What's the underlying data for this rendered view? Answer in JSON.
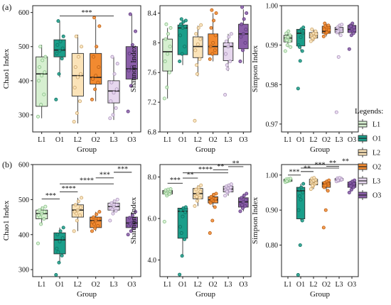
{
  "panel_labels": [
    "(a)",
    "(b)"
  ],
  "group_order": [
    "L1",
    "O1",
    "L2",
    "O2",
    "L3",
    "O3"
  ],
  "legend": {
    "title": "Legends:",
    "entries": [
      "L1",
      "O1",
      "L2",
      "O2",
      "L3",
      "O3"
    ]
  },
  "colors": {
    "L1": {
      "fill": "#d6efd0",
      "edge": "#84bf83"
    },
    "O1": {
      "fill": "#1a9e8a",
      "edge": "#0f6f60"
    },
    "L2": {
      "fill": "#fbe3b8",
      "edge": "#c9a46a"
    },
    "O2": {
      "fill": "#f28a30",
      "edge": "#b85e14"
    },
    "L3": {
      "fill": "#e6d7ee",
      "edge": "#aa92ba"
    },
    "O3": {
      "fill": "#8a5ea8",
      "edge": "#5e3a7e"
    }
  },
  "chart_data": [
    {
      "type": "box",
      "id": "a-chao1",
      "xlabel": "Group",
      "ylabel": "Chao1 Index",
      "ylim": [
        250,
        620
      ],
      "yticks": [
        300,
        400,
        500,
        600
      ],
      "categories": [
        "L1",
        "O1",
        "L2",
        "O2",
        "L3",
        "O3"
      ],
      "boxes": [
        {
          "group": "L1",
          "min": 290,
          "q1": 325,
          "median": 420,
          "q3": 470,
          "max": 505,
          "points": [
            295,
            330,
            360,
            400,
            415,
            425,
            440,
            460,
            470,
            500
          ]
        },
        {
          "group": "O1",
          "min": 410,
          "q1": 470,
          "median": 490,
          "q3": 520,
          "max": 575,
          "points": [
            345,
            420,
            465,
            480,
            488,
            495,
            505,
            515,
            530,
            575
          ]
        },
        {
          "group": "L2",
          "min": 275,
          "q1": 355,
          "median": 415,
          "q3": 480,
          "max": 535,
          "points": [
            280,
            305,
            340,
            380,
            410,
            420,
            440,
            470,
            500,
            530
          ]
        },
        {
          "group": "O2",
          "min": 340,
          "q1": 390,
          "median": 410,
          "q3": 480,
          "max": 580,
          "points": [
            345,
            375,
            395,
            405,
            415,
            440,
            470,
            500,
            560,
            585
          ]
        },
        {
          "group": "L3",
          "min": 285,
          "q1": 335,
          "median": 370,
          "q3": 400,
          "max": 470,
          "points": [
            290,
            300,
            320,
            340,
            365,
            375,
            395,
            420,
            450,
            470
          ]
        },
        {
          "group": "O3",
          "min": 380,
          "q1": 405,
          "median": 435,
          "q3": 500,
          "max": 595,
          "points": [
            310,
            385,
            410,
            430,
            440,
            460,
            480,
            505,
            545,
            595
          ]
        }
      ],
      "significance": [
        {
          "from": "O1",
          "to": "L3",
          "y": 590,
          "label": "***"
        }
      ]
    },
    {
      "type": "box",
      "id": "a-shannon",
      "xlabel": "Group",
      "ylabel": "Shannon Index",
      "ylim": [
        6.8,
        8.5
      ],
      "yticks": [
        6.8,
        7.2,
        7.6,
        8.0,
        8.4
      ],
      "categories": [
        "L1",
        "O1",
        "L2",
        "O2",
        "L3",
        "O3"
      ],
      "boxes": [
        {
          "group": "L1",
          "min": 7.25,
          "q1": 7.62,
          "median": 7.88,
          "q3": 8.05,
          "max": 8.2,
          "points": [
            7.25,
            7.4,
            7.6,
            7.75,
            7.85,
            7.95,
            8.05,
            8.12,
            8.2,
            8.25
          ]
        },
        {
          "group": "O1",
          "min": 7.7,
          "q1": 7.84,
          "median": 8.2,
          "q3": 8.24,
          "max": 8.3,
          "points": [
            7.75,
            7.85,
            7.95,
            8.1,
            8.2,
            8.22,
            8.25,
            8.28,
            8.3,
            8.32
          ]
        },
        {
          "group": "L2",
          "min": 7.55,
          "q1": 7.8,
          "median": 7.95,
          "q3": 8.08,
          "max": 8.23,
          "points": [
            6.95,
            7.58,
            7.78,
            7.9,
            7.98,
            8.05,
            8.12,
            8.2,
            8.24,
            7.7
          ]
        },
        {
          "group": "O2",
          "min": 7.75,
          "q1": 7.84,
          "median": 7.95,
          "q3": 8.12,
          "max": 8.4,
          "points": [
            7.78,
            7.85,
            7.9,
            7.95,
            8.0,
            8.1,
            8.2,
            8.3,
            8.4,
            8.44
          ]
        },
        {
          "group": "L3",
          "min": 7.62,
          "q1": 7.76,
          "median": 7.95,
          "q3": 8.0,
          "max": 8.12,
          "points": [
            7.3,
            7.65,
            7.75,
            7.85,
            7.95,
            7.98,
            8.02,
            8.08,
            8.12,
            7.7
          ]
        },
        {
          "group": "O3",
          "min": 7.72,
          "q1": 7.92,
          "median": 8.12,
          "q3": 8.25,
          "max": 8.45,
          "points": [
            7.75,
            7.9,
            8.0,
            8.08,
            8.12,
            8.18,
            8.25,
            8.32,
            8.4,
            8.48
          ]
        }
      ],
      "significance": []
    },
    {
      "type": "box",
      "id": "a-simpson",
      "xlabel": "Group",
      "ylabel": "Simpson Index",
      "ylim": [
        0.968,
        1.0
      ],
      "yticks": [
        0.97,
        0.98,
        0.99,
        1.0
      ],
      "tick_labels": [
        "0.97",
        "0.98",
        "0.99",
        "1.00"
      ],
      "categories": [
        "L1",
        "O1",
        "L2",
        "O2",
        "L3",
        "O3"
      ],
      "boxes": [
        {
          "group": "L1",
          "min": 0.9895,
          "q1": 0.9908,
          "median": 0.9918,
          "q3": 0.9925,
          "max": 0.9935,
          "points": [
            0.9885,
            0.99,
            0.991,
            0.9915,
            0.992,
            0.9925,
            0.993,
            0.9935,
            0.9895,
            0.9912
          ]
        },
        {
          "group": "O1",
          "min": 0.9885,
          "q1": 0.9898,
          "median": 0.993,
          "q3": 0.994,
          "max": 0.9945,
          "points": [
            0.979,
            0.986,
            0.9885,
            0.99,
            0.992,
            0.993,
            0.9935,
            0.994,
            0.9945,
            0.9895
          ]
        },
        {
          "group": "L2",
          "min": 0.991,
          "q1": 0.9918,
          "median": 0.9925,
          "q3": 0.9932,
          "max": 0.994,
          "points": [
            0.991,
            0.9915,
            0.992,
            0.9925,
            0.993,
            0.9935,
            0.994,
            0.9922,
            0.9928,
            0.9918
          ]
        },
        {
          "group": "O2",
          "min": 0.9922,
          "q1": 0.993,
          "median": 0.9935,
          "q3": 0.9948,
          "max": 0.9955,
          "points": [
            0.9922,
            0.993,
            0.9935,
            0.994,
            0.9945,
            0.995,
            0.9955,
            0.9932,
            0.9938,
            0.9948
          ]
        },
        {
          "group": "L3",
          "min": 0.9925,
          "q1": 0.9932,
          "median": 0.994,
          "q3": 0.9945,
          "max": 0.9952,
          "points": [
            0.973,
            0.987,
            0.9925,
            0.9932,
            0.9938,
            0.994,
            0.9945,
            0.995,
            0.9952,
            0.9935
          ]
        },
        {
          "group": "O3",
          "min": 0.9925,
          "q1": 0.9932,
          "median": 0.994,
          "q3": 0.995,
          "max": 0.9955,
          "points": [
            0.989,
            0.9925,
            0.993,
            0.9935,
            0.994,
            0.9945,
            0.995,
            0.9955,
            0.9938,
            0.9948
          ]
        }
      ],
      "significance": []
    },
    {
      "type": "box",
      "id": "b-chao1",
      "xlabel": "Group",
      "ylabel": "Chao1 Index",
      "ylim": [
        280,
        600
      ],
      "yticks": [
        300,
        400,
        500,
        600
      ],
      "categories": [
        "L1",
        "O1",
        "L2",
        "O2",
        "L3",
        "O3"
      ],
      "boxes": [
        {
          "group": "L1",
          "min": 430,
          "q1": 445,
          "median": 460,
          "q3": 470,
          "max": 480,
          "points": [
            375,
            430,
            445,
            455,
            460,
            465,
            470,
            475,
            480,
            450
          ]
        },
        {
          "group": "O1",
          "min": 320,
          "q1": 345,
          "median": 385,
          "q3": 405,
          "max": 420,
          "points": [
            285,
            320,
            340,
            360,
            380,
            390,
            400,
            410,
            420,
            350
          ]
        },
        {
          "group": "L2",
          "min": 410,
          "q1": 450,
          "median": 470,
          "q3": 485,
          "max": 505,
          "points": [
            410,
            440,
            455,
            465,
            470,
            478,
            485,
            495,
            505,
            460
          ]
        },
        {
          "group": "O2",
          "min": 410,
          "q1": 420,
          "median": 440,
          "q3": 450,
          "max": 465,
          "points": [
            410,
            418,
            425,
            435,
            440,
            445,
            450,
            458,
            465,
            430
          ]
        },
        {
          "group": "L3",
          "min": 460,
          "q1": 470,
          "median": 480,
          "q3": 490,
          "max": 500,
          "points": [
            440,
            460,
            468,
            475,
            480,
            485,
            490,
            495,
            500,
            472
          ]
        },
        {
          "group": "O3",
          "min": 410,
          "q1": 420,
          "median": 433,
          "q3": 450,
          "max": 465,
          "points": [
            400,
            410,
            418,
            425,
            433,
            440,
            448,
            455,
            465,
            430
          ]
        }
      ],
      "significance": [
        {
          "from": "L1",
          "to": "O1",
          "y": 502,
          "label": "***"
        },
        {
          "from": "O1",
          "to": "L2",
          "y": 522,
          "label": "****"
        },
        {
          "from": "O1",
          "to": "L3",
          "y": 545,
          "label": "****"
        },
        {
          "from": "L3",
          "to": "O2",
          "y": 562,
          "label": "***"
        },
        {
          "from": "L3",
          "to": "O3",
          "y": 578,
          "label": "***"
        }
      ]
    },
    {
      "type": "box",
      "id": "b-shannon",
      "xlabel": "Group",
      "ylabel": "Shannon Index",
      "ylim": [
        3.2,
        8.6
      ],
      "yticks": [
        4.0,
        6.0,
        8.0
      ],
      "tick_labels": [
        "4.0",
        "6.0",
        "8.0"
      ],
      "categories": [
        "L1",
        "O1",
        "L2",
        "O2",
        "L3",
        "O3"
      ],
      "boxes": [
        {
          "group": "L1",
          "min": 7.1,
          "q1": 7.18,
          "median": 7.28,
          "q3": 7.35,
          "max": 7.42,
          "points": [
            5.85,
            7.1,
            7.18,
            7.24,
            7.28,
            7.32,
            7.36,
            7.4,
            7.42,
            7.2
          ]
        },
        {
          "group": "O1",
          "min": 4.2,
          "q1": 5.05,
          "median": 6.35,
          "q3": 6.5,
          "max": 6.55,
          "points": [
            3.3,
            4.2,
            5.0,
            5.6,
            6.1,
            6.3,
            6.4,
            6.5,
            6.55,
            5.3
          ]
        },
        {
          "group": "L2",
          "min": 6.6,
          "q1": 6.95,
          "median": 7.2,
          "q3": 7.45,
          "max": 7.6,
          "points": [
            6.6,
            6.85,
            7.0,
            7.1,
            7.2,
            7.3,
            7.4,
            7.5,
            7.6,
            7.05
          ]
        },
        {
          "group": "O2",
          "min": 6.55,
          "q1": 6.75,
          "median": 6.9,
          "q3": 7.05,
          "max": 7.2,
          "points": [
            5.3,
            5.9,
            6.55,
            6.75,
            6.85,
            6.95,
            7.05,
            7.15,
            7.2,
            6.9
          ]
        },
        {
          "group": "L3",
          "min": 7.1,
          "q1": 7.28,
          "median": 7.42,
          "q3": 7.55,
          "max": 7.65,
          "points": [
            7.1,
            7.25,
            7.35,
            7.4,
            7.45,
            7.5,
            7.55,
            7.6,
            7.65,
            7.3
          ]
        },
        {
          "group": "O3",
          "min": 6.35,
          "q1": 6.55,
          "median": 6.8,
          "q3": 7.0,
          "max": 7.2,
          "points": [
            6.35,
            6.5,
            6.6,
            6.7,
            6.8,
            6.9,
            7.0,
            7.1,
            7.2,
            6.65
          ]
        }
      ],
      "significance": [
        {
          "from": "L1",
          "to": "O1",
          "y": 7.7,
          "label": "***"
        },
        {
          "from": "O1",
          "to": "L2",
          "y": 7.95,
          "label": "**"
        },
        {
          "from": "O1",
          "to": "L3",
          "y": 8.2,
          "label": "****"
        },
        {
          "from": "L3",
          "to": "O2",
          "y": 8.35,
          "label": "**"
        },
        {
          "from": "L3",
          "to": "O3",
          "y": 8.5,
          "label": "**"
        }
      ]
    },
    {
      "type": "box",
      "id": "b-simpson",
      "xlabel": "Group",
      "ylabel": "Simpson Index",
      "ylim": [
        0.71,
        1.03
      ],
      "yticks": [
        0.8,
        0.9,
        1.0
      ],
      "tick_labels": [
        "0.80",
        "0.90",
        "1.00"
      ],
      "categories": [
        "L1",
        "O1",
        "L2",
        "O2",
        "L3",
        "O3"
      ],
      "boxes": [
        {
          "group": "L1",
          "min": 0.98,
          "q1": 0.982,
          "median": 0.985,
          "q3": 0.988,
          "max": 0.99,
          "points": [
            0.98,
            0.982,
            0.984,
            0.985,
            0.986,
            0.987,
            0.988,
            0.989,
            0.99,
            0.983
          ]
        },
        {
          "group": "O1",
          "min": 0.87,
          "q1": 0.875,
          "median": 0.955,
          "q3": 0.965,
          "max": 0.975,
          "points": [
            0.715,
            0.8,
            0.87,
            0.9,
            0.93,
            0.95,
            0.96,
            0.965,
            0.975,
            0.94
          ]
        },
        {
          "group": "L2",
          "min": 0.96,
          "q1": 0.972,
          "median": 0.98,
          "q3": 0.988,
          "max": 0.992,
          "points": [
            0.96,
            0.968,
            0.975,
            0.98,
            0.984,
            0.987,
            0.99,
            0.992,
            0.978,
            0.97
          ]
        },
        {
          "group": "O2",
          "min": 0.955,
          "q1": 0.965,
          "median": 0.975,
          "q3": 0.98,
          "max": 0.985,
          "points": [
            0.85,
            0.9,
            0.955,
            0.965,
            0.972,
            0.975,
            0.978,
            0.982,
            0.985,
            0.97
          ]
        },
        {
          "group": "L3",
          "min": 0.982,
          "q1": 0.985,
          "median": 0.988,
          "q3": 0.99,
          "max": 0.992,
          "points": [
            0.982,
            0.984,
            0.986,
            0.988,
            0.989,
            0.99,
            0.991,
            0.992,
            0.987,
            0.985
          ]
        },
        {
          "group": "O3",
          "min": 0.955,
          "q1": 0.965,
          "median": 0.972,
          "q3": 0.98,
          "max": 0.985,
          "points": [
            0.95,
            0.958,
            0.965,
            0.97,
            0.972,
            0.975,
            0.978,
            0.982,
            0.985,
            0.968
          ]
        }
      ],
      "significance": [
        {
          "from": "L1",
          "to": "O1",
          "y": 1.0,
          "label": "***"
        },
        {
          "from": "O1",
          "to": "L2",
          "y": 1.01,
          "label": "**"
        },
        {
          "from": "O1",
          "to": "L3",
          "y": 1.02,
          "label": "***"
        },
        {
          "from": "L3",
          "to": "O2",
          "y": 1.025,
          "label": "**"
        },
        {
          "from": "L3",
          "to": "O3",
          "y": 1.03,
          "label": "**"
        }
      ]
    }
  ]
}
